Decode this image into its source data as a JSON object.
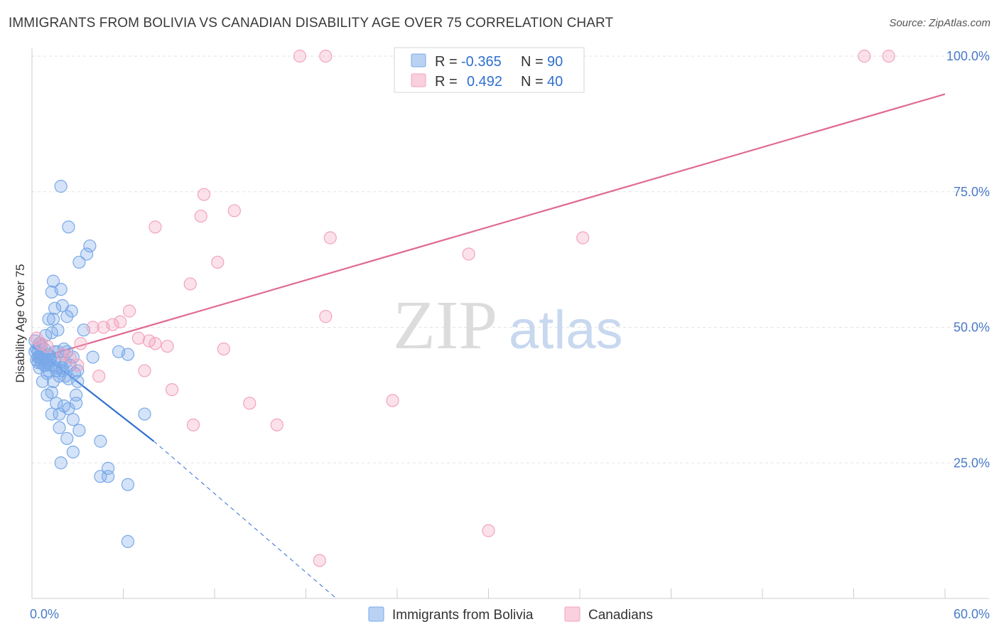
{
  "title": "IMMIGRANTS FROM BOLIVIA VS CANADIAN DISABILITY AGE OVER 75 CORRELATION CHART",
  "source": "Source: ZipAtlas.com",
  "watermark": {
    "zip": "ZIP",
    "atlas": "atlas"
  },
  "legend": {
    "r_label": "R =",
    "n_label": "N =",
    "rows": [
      {
        "r": "-0.365",
        "n": "90",
        "color": "#7aa9e8"
      },
      {
        "r": "0.492",
        "n": "40",
        "color": "#f2a3bd"
      }
    ]
  },
  "chart_data": {
    "type": "scatter",
    "title": "IMMIGRANTS FROM BOLIVIA VS CANADIAN DISABILITY AGE OVER 75 CORRELATION CHART",
    "ylabel": "Disability Age Over 75",
    "xlim": [
      0,
      60
    ],
    "ylim": [
      0,
      100
    ],
    "x_tick_labels": [
      "0.0%",
      "60.0%"
    ],
    "y_tick_labels": [
      {
        "value": 25,
        "label": "25.0%"
      },
      {
        "value": 50,
        "label": "50.0%"
      },
      {
        "value": 75,
        "label": "75.0%"
      },
      {
        "value": 100,
        "label": "100.0%"
      }
    ],
    "grid": true,
    "legend_position": "bottom-center",
    "series": [
      {
        "name": "Immigrants from Bolivia",
        "color": "#7aa9e8",
        "line_color": "#2f6fd1",
        "trend": {
          "x0": 0,
          "y0": 46.5,
          "x1": 8,
          "y1": 29.0,
          "dash_to_x": 20,
          "dash_to_y": 0
        },
        "points": [
          [
            0.2,
            47.5
          ],
          [
            0.3,
            46.0
          ],
          [
            0.4,
            45.5
          ],
          [
            0.5,
            44.5
          ],
          [
            0.6,
            45.0
          ],
          [
            0.4,
            43.5
          ],
          [
            0.7,
            44.0
          ],
          [
            0.8,
            43.0
          ],
          [
            0.5,
            42.5
          ],
          [
            0.9,
            44.0
          ],
          [
            1.0,
            43.5
          ],
          [
            1.1,
            42.0
          ],
          [
            1.2,
            44.5
          ],
          [
            1.3,
            43.0
          ],
          [
            1.0,
            41.5
          ],
          [
            0.8,
            46.0
          ],
          [
            0.6,
            46.5
          ],
          [
            1.5,
            44.0
          ],
          [
            1.6,
            42.0
          ],
          [
            1.8,
            41.0
          ],
          [
            1.4,
            40.0
          ],
          [
            2.0,
            42.5
          ],
          [
            2.2,
            41.0
          ],
          [
            2.5,
            43.0
          ],
          [
            2.4,
            40.5
          ],
          [
            2.8,
            41.5
          ],
          [
            3.0,
            40.0
          ],
          [
            1.7,
            45.5
          ],
          [
            1.9,
            43.5
          ],
          [
            2.1,
            46.0
          ],
          [
            0.9,
            48.5
          ],
          [
            1.3,
            49.0
          ],
          [
            1.7,
            49.5
          ],
          [
            2.3,
            52.0
          ],
          [
            1.4,
            51.5
          ],
          [
            1.1,
            51.5
          ],
          [
            1.5,
            53.5
          ],
          [
            2.6,
            53.0
          ],
          [
            2.0,
            54.0
          ],
          [
            1.3,
            56.5
          ],
          [
            1.4,
            58.5
          ],
          [
            1.9,
            57.0
          ],
          [
            3.1,
            62.0
          ],
          [
            3.6,
            63.5
          ],
          [
            3.8,
            65.0
          ],
          [
            2.4,
            68.5
          ],
          [
            1.9,
            76.0
          ],
          [
            0.7,
            40.0
          ],
          [
            1.0,
            37.5
          ],
          [
            1.3,
            38.0
          ],
          [
            1.6,
            36.0
          ],
          [
            2.1,
            35.5
          ],
          [
            2.4,
            35.0
          ],
          [
            2.9,
            36.0
          ],
          [
            2.9,
            37.5
          ],
          [
            1.8,
            34.0
          ],
          [
            1.3,
            34.0
          ],
          [
            1.8,
            31.5
          ],
          [
            2.7,
            33.0
          ],
          [
            3.1,
            31.0
          ],
          [
            2.3,
            29.5
          ],
          [
            2.7,
            27.0
          ],
          [
            4.5,
            29.0
          ],
          [
            1.9,
            25.0
          ],
          [
            5.0,
            24.0
          ],
          [
            4.5,
            22.5
          ],
          [
            5.0,
            22.5
          ],
          [
            6.3,
            21.0
          ],
          [
            7.4,
            34.0
          ],
          [
            6.3,
            45.0
          ],
          [
            5.7,
            45.5
          ],
          [
            4.0,
            44.5
          ],
          [
            3.4,
            49.5
          ],
          [
            2.3,
            45.5
          ],
          [
            2.7,
            44.5
          ],
          [
            0.3,
            44.0
          ],
          [
            0.2,
            45.5
          ],
          [
            0.5,
            47.0
          ],
          [
            0.7,
            45.0
          ],
          [
            1.1,
            45.0
          ],
          [
            1.2,
            44.0
          ],
          [
            0.9,
            43.0
          ],
          [
            2.0,
            42.0
          ],
          [
            3.0,
            42.0
          ],
          [
            1.6,
            42.5
          ],
          [
            2.2,
            43.5
          ],
          [
            0.4,
            44.5
          ],
          [
            0.6,
            43.5
          ],
          [
            6.3,
            10.5
          ],
          [
            1.5,
            45.5
          ]
        ]
      },
      {
        "name": "Canadians",
        "color": "#f2a3bd",
        "line_color": "#e06a94",
        "trend": {
          "x0": 0,
          "y0": 44.0,
          "x1": 60,
          "y1": 93.0
        },
        "points": [
          [
            0.3,
            48.0
          ],
          [
            0.6,
            47.0
          ],
          [
            1.0,
            46.5
          ],
          [
            2.0,
            45.0
          ],
          [
            2.5,
            44.5
          ],
          [
            3.2,
            47.0
          ],
          [
            4.0,
            50.0
          ],
          [
            4.7,
            50.0
          ],
          [
            5.3,
            50.5
          ],
          [
            5.8,
            51.0
          ],
          [
            6.4,
            53.0
          ],
          [
            7.0,
            48.0
          ],
          [
            7.7,
            47.5
          ],
          [
            8.1,
            47.0
          ],
          [
            8.9,
            46.5
          ],
          [
            7.4,
            42.0
          ],
          [
            4.4,
            41.0
          ],
          [
            3.0,
            43.0
          ],
          [
            9.2,
            38.5
          ],
          [
            10.6,
            32.0
          ],
          [
            12.6,
            46.0
          ],
          [
            14.3,
            36.0
          ],
          [
            16.1,
            32.0
          ],
          [
            19.3,
            52.0
          ],
          [
            23.7,
            36.5
          ],
          [
            30.0,
            12.5
          ],
          [
            18.9,
            7.0
          ],
          [
            8.1,
            68.5
          ],
          [
            10.4,
            58.0
          ],
          [
            11.3,
            74.5
          ],
          [
            11.1,
            70.5
          ],
          [
            12.2,
            62.0
          ],
          [
            13.3,
            71.5
          ],
          [
            19.6,
            66.5
          ],
          [
            28.7,
            63.5
          ],
          [
            36.2,
            66.5
          ],
          [
            17.6,
            100.0
          ],
          [
            19.3,
            100.0
          ],
          [
            54.7,
            100.0
          ],
          [
            56.3,
            100.0
          ]
        ]
      }
    ]
  }
}
